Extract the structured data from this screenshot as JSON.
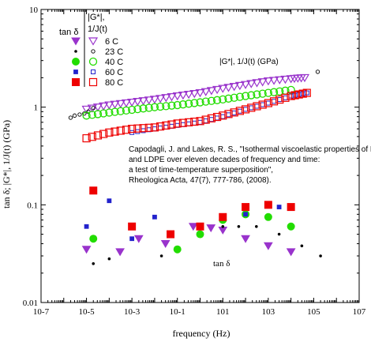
{
  "chart_data": {
    "type": "scatter",
    "x_scale": "log",
    "y_scale": "log",
    "xlim": [
      1e-07,
      10000000.0
    ],
    "ylim": [
      0.01,
      10
    ],
    "xlabel": "frequency (Hz)",
    "ylabel": "tan δ; |G*|, 1/J(t) (GPa)",
    "x_ticks": [
      "10-7",
      "10-5",
      "10-3",
      "10-1",
      "101",
      "103",
      "105",
      "107"
    ],
    "y_ticks": [
      "10",
      "1",
      "0.1",
      "0.01"
    ],
    "legend": {
      "headers": [
        "tan δ",
        "|G*|,",
        "1/J(t)"
      ],
      "entries": [
        {
          "label": "6 C",
          "color": "#9933cc",
          "filled_marker": "triangle-down",
          "open_marker": "triangle-down"
        },
        {
          "label": "23 C",
          "color": "#000000",
          "filled_marker": "dot",
          "open_marker": "small-circle"
        },
        {
          "label": "40 C",
          "color": "#22dd00",
          "filled_marker": "circle",
          "open_marker": "circle"
        },
        {
          "label": "60 C",
          "color": "#2222cc",
          "filled_marker": "small-square",
          "open_marker": "small-square"
        },
        {
          "label": "80 C",
          "color": "#ee0000",
          "filled_marker": "square",
          "open_marker": "square"
        }
      ]
    },
    "annotations": {
      "modulus_label": "|G*|, 1/J(t) (GPa)",
      "tan_label": "tan δ",
      "citation": [
        "Capodagli, J. and Lakes, R. S., \"Isothermal viscoelastic properties of PMMA",
        "and LDPE over eleven decades of frequency and time:",
        "a test of time-temperature superposition\",",
        "Rheologica Acta,  47(7), 777-786,  (2008)."
      ]
    },
    "series": [
      {
        "name": "6 C",
        "kind": "modulus",
        "marker": "triangle-down-open",
        "color": "#9933cc",
        "x": [
          1e-05,
          0.0001,
          0.001,
          0.01,
          0.1,
          1,
          10,
          100,
          1000,
          10000,
          40000
        ],
        "y": [
          0.95,
          1.05,
          1.12,
          1.2,
          1.3,
          1.4,
          1.55,
          1.7,
          1.85,
          1.95,
          2.0
        ]
      },
      {
        "name": "23 C",
        "kind": "modulus",
        "marker": "small-circle-open",
        "color": "#000000",
        "x": [
          2e-06,
          3e-06,
          5e-06,
          8e-06,
          1.2e-05,
          2e-05,
          150000
        ],
        "y": [
          0.78,
          0.82,
          0.84,
          0.86,
          0.9,
          0.98,
          2.3
        ]
      },
      {
        "name": "40 C",
        "kind": "modulus",
        "marker": "circle-open",
        "color": "#22dd00",
        "x": [
          1e-05,
          0.0001,
          0.001,
          0.01,
          0.1,
          1,
          10,
          100,
          1000,
          10000
        ],
        "y": [
          0.82,
          0.88,
          0.94,
          1.0,
          1.05,
          1.12,
          1.2,
          1.3,
          1.4,
          1.5
        ]
      },
      {
        "name": "60 C",
        "kind": "modulus",
        "marker": "small-square-open",
        "color": "#2222cc",
        "x": [
          0.001,
          0.01,
          0.1,
          1,
          10,
          100,
          1000,
          10000,
          50000
        ],
        "y": [
          0.55,
          0.6,
          0.65,
          0.7,
          0.8,
          0.95,
          1.1,
          1.3,
          1.4
        ]
      },
      {
        "name": "80 C",
        "kind": "modulus",
        "marker": "square-open",
        "color": "#ee0000",
        "x": [
          1e-05,
          0.0001,
          0.001,
          0.01,
          0.1,
          1,
          10,
          100,
          1000,
          10000,
          50000
        ],
        "y": [
          0.48,
          0.55,
          0.6,
          0.62,
          0.68,
          0.72,
          0.82,
          0.95,
          1.1,
          1.3,
          1.4
        ]
      },
      {
        "name": "6 C",
        "kind": "tan",
        "marker": "triangle-down",
        "color": "#9933cc",
        "x": [
          1e-05,
          0.0003,
          0.002,
          0.03,
          0.5,
          3,
          10,
          100,
          1000,
          10000
        ],
        "y": [
          0.035,
          0.033,
          0.045,
          0.04,
          0.06,
          0.058,
          0.055,
          0.045,
          0.038,
          0.033
        ]
      },
      {
        "name": "23 C",
        "kind": "tan",
        "marker": "dot",
        "color": "#000000",
        "x": [
          2e-05,
          0.0001,
          0.02,
          0.1,
          1,
          10,
          50,
          300,
          3000,
          30000,
          200000
        ],
        "y": [
          0.025,
          0.028,
          0.03,
          0.035,
          0.05,
          0.06,
          0.06,
          0.06,
          0.05,
          0.038,
          0.03
        ]
      },
      {
        "name": "40 C",
        "kind": "tan",
        "marker": "circle",
        "color": "#22dd00",
        "x": [
          2e-05,
          0.1,
          1,
          10,
          100,
          1000,
          10000
        ],
        "y": [
          0.045,
          0.035,
          0.05,
          0.07,
          0.08,
          0.075,
          0.06
        ]
      },
      {
        "name": "60 C",
        "kind": "tan",
        "marker": "small-square",
        "color": "#2222cc",
        "x": [
          1e-05,
          0.0001,
          0.001,
          0.01,
          1,
          100,
          3000
        ],
        "y": [
          0.06,
          0.11,
          0.045,
          0.075,
          0.06,
          0.08,
          0.095
        ]
      },
      {
        "name": "80 C",
        "kind": "tan",
        "marker": "square",
        "color": "#ee0000",
        "x": [
          2e-05,
          0.001,
          0.05,
          1,
          10,
          100,
          1000,
          10000
        ],
        "y": [
          0.14,
          0.06,
          0.05,
          0.06,
          0.075,
          0.095,
          0.1,
          0.095
        ]
      }
    ]
  }
}
